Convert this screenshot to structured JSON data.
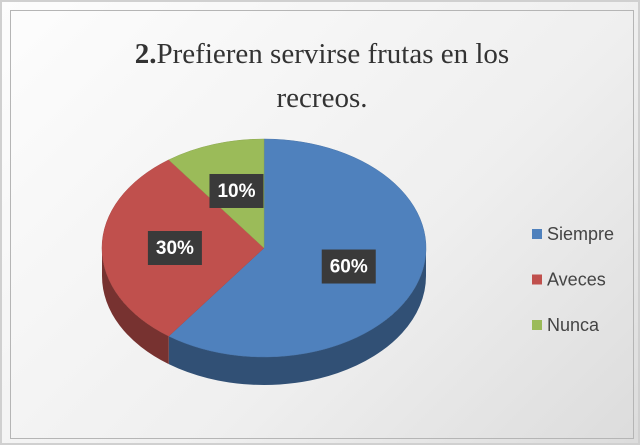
{
  "chart_data": {
    "type": "pie3d",
    "title_prefix": "2.",
    "title": "Prefieren servirse frutas en los recreos.",
    "categories": [
      "Siempre",
      "Aveces",
      "Nunca"
    ],
    "values": [
      60,
      30,
      10
    ],
    "value_labels": [
      "60%",
      "30%",
      "10%"
    ],
    "colors": [
      "#4f81bd",
      "#c0504d",
      "#9bbb59"
    ],
    "legend": "right"
  }
}
